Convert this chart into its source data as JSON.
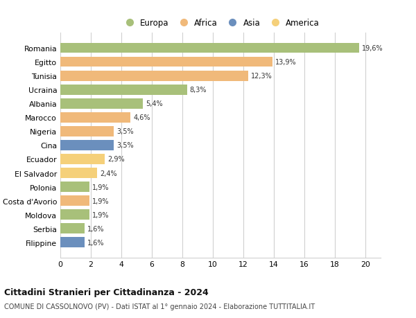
{
  "countries": [
    "Romania",
    "Egitto",
    "Tunisia",
    "Ucraina",
    "Albania",
    "Marocco",
    "Nigeria",
    "Cina",
    "Ecuador",
    "El Salvador",
    "Polonia",
    "Costa d'Avorio",
    "Moldova",
    "Serbia",
    "Filippine"
  ],
  "values": [
    19.6,
    13.9,
    12.3,
    8.3,
    5.4,
    4.6,
    3.5,
    3.5,
    2.9,
    2.4,
    1.9,
    1.9,
    1.9,
    1.6,
    1.6
  ],
  "labels": [
    "19,6%",
    "13,9%",
    "12,3%",
    "8,3%",
    "5,4%",
    "4,6%",
    "3,5%",
    "3,5%",
    "2,9%",
    "2,4%",
    "1,9%",
    "1,9%",
    "1,9%",
    "1,6%",
    "1,6%"
  ],
  "colors": [
    "#a8c07a",
    "#f0b97a",
    "#f0b97a",
    "#a8c07a",
    "#a8c07a",
    "#f0b97a",
    "#f0b97a",
    "#6b8fbd",
    "#f5d07a",
    "#f5d07a",
    "#a8c07a",
    "#f0b97a",
    "#a8c07a",
    "#a8c07a",
    "#6b8fbd"
  ],
  "legend_labels": [
    "Europa",
    "Africa",
    "Asia",
    "America"
  ],
  "legend_colors": [
    "#a8c07a",
    "#f0b97a",
    "#6b8fbd",
    "#f5d07a"
  ],
  "xlim": [
    0,
    21
  ],
  "xticks": [
    0,
    2,
    4,
    6,
    8,
    10,
    12,
    14,
    16,
    18,
    20
  ],
  "title": "Cittadini Stranieri per Cittadinanza - 2024",
  "subtitle": "COMUNE DI CASSOLNOVO (PV) - Dati ISTAT al 1° gennaio 2024 - Elaborazione TUTTITALIA.IT",
  "bg_color": "#ffffff",
  "grid_color": "#d0d0d0"
}
